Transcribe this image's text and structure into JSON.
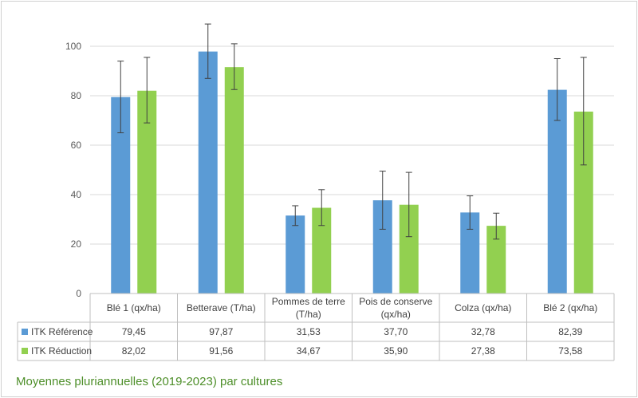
{
  "chart_data": {
    "type": "bar",
    "categories": [
      "Blé 1 (qx/ha)",
      "Betterave (T/ha)",
      "Pommes de terre (T/ha)",
      "Pois de conserve (qx/ha)",
      "Colza (qx/ha)",
      "Blé 2 (qx/ha)"
    ],
    "category_lines": [
      [
        "Blé 1 (qx/ha)"
      ],
      [
        "Betterave (T/ha)"
      ],
      [
        "Pommes de terre",
        "(T/ha)"
      ],
      [
        "Pois de conserve",
        "(qx/ha)"
      ],
      [
        "Colza (qx/ha)"
      ],
      [
        "Blé 2 (qx/ha)"
      ]
    ],
    "series": [
      {
        "name": "ITK Référence",
        "color": "#5b9bd5",
        "values": [
          79.45,
          97.87,
          31.53,
          37.7,
          32.78,
          82.39
        ],
        "labels": [
          "79,45",
          "97,87",
          "31,53",
          "37,70",
          "32,78",
          "82,39"
        ],
        "error_low": [
          65,
          87,
          27.5,
          26,
          26,
          70
        ],
        "error_high": [
          94,
          109,
          35.5,
          49.5,
          39.5,
          95
        ]
      },
      {
        "name": "ITK Réduction",
        "color": "#92d050",
        "values": [
          82.02,
          91.56,
          34.67,
          35.9,
          27.38,
          73.58
        ],
        "labels": [
          "82,02",
          "91,56",
          "34,67",
          "35,90",
          "27,38",
          "73,58"
        ],
        "error_low": [
          69,
          82.5,
          27.5,
          23,
          22,
          52
        ],
        "error_high": [
          95.5,
          101,
          42,
          49,
          32.5,
          95.5
        ]
      }
    ],
    "ylim": [
      0,
      120
    ],
    "yticks": [
      0,
      20,
      40,
      60,
      80,
      100
    ],
    "grid": true,
    "legend": "data-table",
    "data_table": true,
    "title": "",
    "xlabel": "",
    "ylabel": ""
  },
  "caption": "Moyennes pluriannuelles (2019-2023) par cultures"
}
